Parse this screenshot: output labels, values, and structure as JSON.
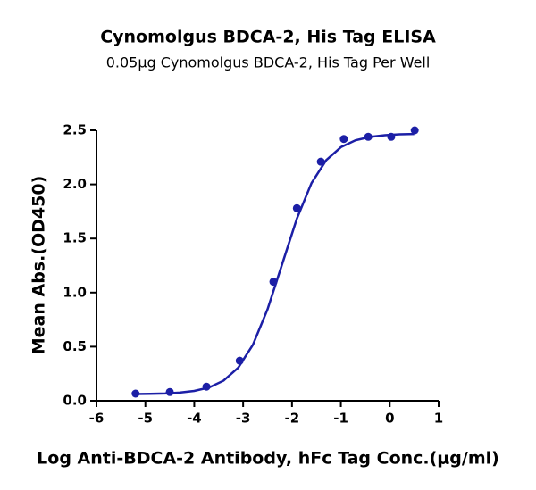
{
  "chart_data": {
    "type": "scatter",
    "title": "Cynomolgus BDCA-2, His Tag ELISA",
    "subtitle": "0.05μg Cynomolgus BDCA-2, His Tag Per Well",
    "x_label": "Log Anti-BDCA-2 Antibody, hFc Tag Conc.(μg/ml)",
    "y_label": "Mean Abs.(OD450)",
    "xlim": [
      -6,
      1
    ],
    "xticks": [
      -6,
      -5,
      -4,
      -3,
      -2,
      -1,
      0,
      1
    ],
    "ylim": [
      0,
      2.5
    ],
    "yticks": [
      {
        "value": 0,
        "label": "0.0"
      },
      0.5,
      {
        "value": 1,
        "label": "1.0"
      },
      1.5,
      {
        "value": 2,
        "label": "2.0"
      },
      2.5
    ],
    "color": "#1c1fa6",
    "series": [
      {
        "mark": "point",
        "x": [
          -5.2,
          -4.5,
          -3.75,
          -3.07,
          -2.38,
          -1.9,
          -1.41,
          -0.94,
          -0.44,
          0.03,
          0.51
        ],
        "values": [
          0.066,
          0.08,
          0.13,
          0.37,
          1.1,
          1.78,
          2.21,
          2.42,
          2.44,
          2.44,
          2.5
        ]
      },
      {
        "mark": "line",
        "x": [
          -5.2,
          -4.9,
          -4.6,
          -4.3,
          -4.0,
          -3.7,
          -3.4,
          -3.1,
          -2.8,
          -2.5,
          -2.2,
          -1.9,
          -1.6,
          -1.3,
          -1.0,
          -0.7,
          -0.4,
          -0.1,
          0.2,
          0.5
        ],
        "values": [
          0.062,
          0.064,
          0.067,
          0.075,
          0.091,
          0.122,
          0.186,
          0.306,
          0.517,
          0.846,
          1.265,
          1.684,
          2.013,
          2.224,
          2.344,
          2.408,
          2.439,
          2.455,
          2.463,
          2.466
        ]
      }
    ]
  }
}
